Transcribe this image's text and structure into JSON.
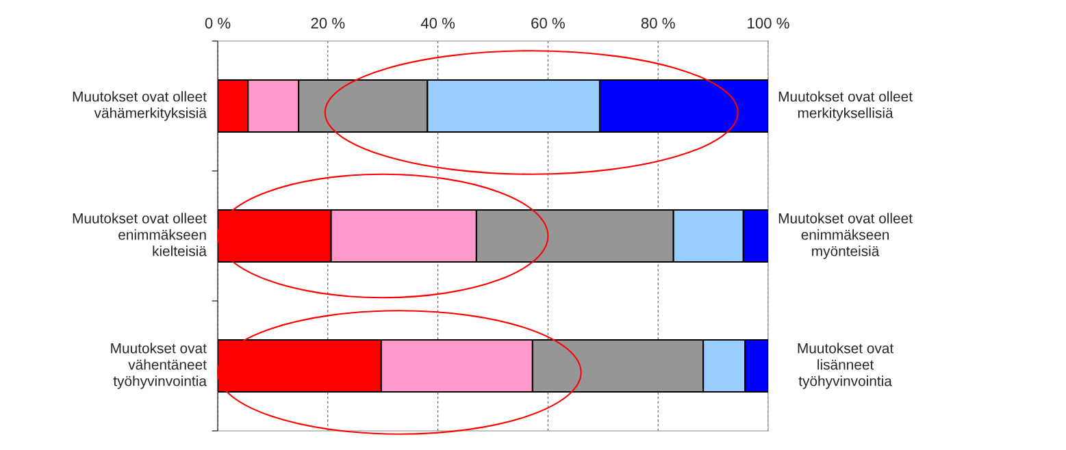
{
  "chart_data": {
    "type": "bar",
    "orientation": "horizontal",
    "stacked": true,
    "categories": [
      "Muutokset ovat olleet\nvähämerkityksisiä",
      "Muutokset ovat olleet\nenimmäkseen\nkielteisiä",
      "Muutokset ovat\nvähentäneet\ntyöhyvinvointia"
    ],
    "y2_categories": [
      "Muutokset ovat olleet\nmerkityksellisiä",
      "Muutokset ovat olleet\nenimmäkseen\nmyönteisiä",
      "Muutokset ovat\nlisänneet\ntyöhyvinvointia"
    ],
    "series": [
      {
        "color": "#ff0000",
        "values": [
          5.5,
          20.6,
          29.7
        ]
      },
      {
        "color": "#ff99cc",
        "values": [
          9.2,
          26.4,
          27.5
        ]
      },
      {
        "color": "#969696",
        "values": [
          23.4,
          35.8,
          31.0
        ]
      },
      {
        "color": "#99ccff",
        "values": [
          31.3,
          12.7,
          7.6
        ]
      },
      {
        "color": "#0000ff",
        "values": [
          30.6,
          4.5,
          4.2
        ]
      }
    ],
    "xlim": [
      0,
      100
    ],
    "xticks": [
      {
        "value": 0,
        "label": "0 %"
      },
      {
        "value": 20,
        "label": "20 %"
      },
      {
        "value": 40,
        "label": "40 %"
      },
      {
        "value": 60,
        "label": "60 %"
      },
      {
        "value": 80,
        "label": "80 %"
      },
      {
        "value": 100,
        "label": "100 %"
      }
    ],
    "grid": "x"
  }
}
